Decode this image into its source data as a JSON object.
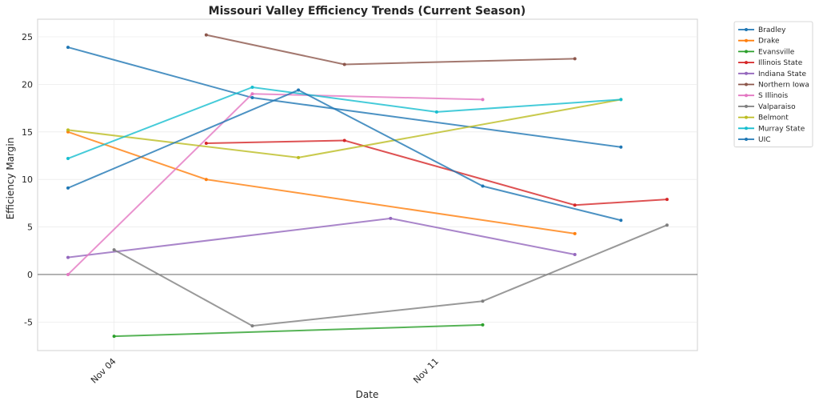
{
  "chart_data": {
    "type": "line",
    "title": "Missouri Valley Efficiency Trends (Current Season)",
    "xlabel": "Date",
    "ylabel": "Efficiency Margin",
    "x_unit": "day of November",
    "xlim": [
      2.34,
      16.66
    ],
    "ylim": [
      -8.0,
      28.2
    ],
    "x_ticks": [
      {
        "value": 4,
        "label": "Nov 04"
      },
      {
        "value": 11,
        "label": "Nov 11"
      }
    ],
    "y_ticks": [
      -5,
      0,
      5,
      10,
      15,
      20,
      25
    ],
    "grid": true,
    "zero_line": true,
    "legend_position": "outside-top-right",
    "series": [
      {
        "name": "Bradley",
        "color": "#1f77b4",
        "points": [
          [
            3,
            23.9
          ],
          [
            7,
            18.6
          ],
          [
            15,
            13.4
          ]
        ]
      },
      {
        "name": "Drake",
        "color": "#ff7f0e",
        "points": [
          [
            3,
            15.0
          ],
          [
            6,
            10.0
          ],
          [
            14,
            4.3
          ]
        ]
      },
      {
        "name": "Evansville",
        "color": "#2ca02c",
        "points": [
          [
            4,
            -6.5
          ],
          [
            12,
            -5.3
          ]
        ]
      },
      {
        "name": "Illinois State",
        "color": "#d62728",
        "points": [
          [
            6,
            13.8
          ],
          [
            9,
            14.1
          ],
          [
            14,
            7.3
          ],
          [
            16,
            7.9
          ]
        ]
      },
      {
        "name": "Indiana State",
        "color": "#9467bd",
        "points": [
          [
            3,
            1.8
          ],
          [
            10,
            5.9
          ],
          [
            14,
            2.1
          ]
        ]
      },
      {
        "name": "Northern Iowa",
        "color": "#8c564b",
        "points": [
          [
            6,
            25.2
          ],
          [
            9,
            22.1
          ],
          [
            14,
            22.7
          ]
        ]
      },
      {
        "name": "S Illinois",
        "color": "#e377c2",
        "points": [
          [
            3,
            0.0
          ],
          [
            7,
            19.0
          ],
          [
            12,
            18.4
          ]
        ]
      },
      {
        "name": "Valparaiso",
        "color": "#7f7f7f",
        "points": [
          [
            4,
            2.6
          ],
          [
            7,
            -5.4
          ],
          [
            12,
            -2.8
          ],
          [
            16,
            5.2
          ]
        ]
      },
      {
        "name": "Belmont",
        "color": "#bcbd22",
        "points": [
          [
            3,
            15.2
          ],
          [
            8,
            12.3
          ],
          [
            15,
            18.4
          ]
        ]
      },
      {
        "name": "Murray State",
        "color": "#17becf",
        "points": [
          [
            3,
            12.2
          ],
          [
            7,
            19.7
          ],
          [
            11,
            17.1
          ],
          [
            15,
            18.4
          ]
        ]
      },
      {
        "name": "UIC",
        "color": "#1f77b4",
        "points": [
          [
            3,
            9.1
          ],
          [
            8,
            19.4
          ],
          [
            12,
            9.3
          ],
          [
            15,
            5.7
          ]
        ]
      }
    ]
  }
}
